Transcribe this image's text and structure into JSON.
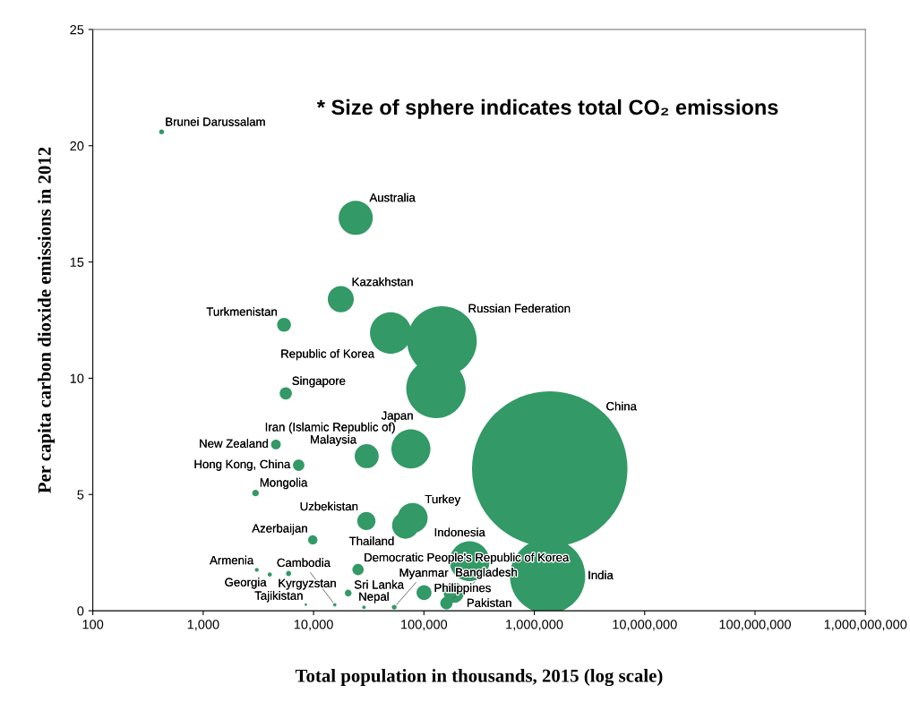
{
  "chart_data": {
    "type": "bubble",
    "xlabel": "Total population in thousands, 2015 (log scale)",
    "ylabel": "Per capita carbon dioxide emissions in 2012",
    "annotations": [
      "* Size of sphere indicates total CO₂ emissions"
    ],
    "log": "x",
    "grid": false,
    "legend": false,
    "xlim": [
      100,
      1000000000
    ],
    "xticks": [
      100,
      {
        "value": 1000,
        "label": "1,000"
      },
      {
        "value": 10000,
        "label": "10,000"
      },
      {
        "value": 100000,
        "label": "100,000"
      },
      {
        "value": 1000000,
        "label": "1,000,000"
      },
      {
        "value": 10000000,
        "label": "10,000,000"
      },
      {
        "value": 100000000,
        "label": "100,000,000"
      },
      {
        "value": 1000000000,
        "label": "1,000,000,000"
      }
    ],
    "ylim": [
      0,
      25
    ],
    "yticks": [
      0,
      5,
      10,
      15,
      20,
      25
    ],
    "series": [
      {
        "color": "#339966",
        "x": [
          420,
          24100,
          17650,
          5400,
          50000,
          145600,
          128500,
          5600,
          4560,
          7330,
          30300,
          76200,
          68000,
          79000,
          30100,
          9840,
          2980,
          3060,
          5940,
          4010,
          25300,
          20600,
          8510,
          15560,
          28600,
          53800,
          100200,
          160000,
          186600,
          259400,
          1320000,
          1380000
        ],
        "values": [
          20.6,
          16.9,
          13.4,
          12.3,
          11.95,
          11.6,
          9.56,
          9.35,
          7.15,
          6.26,
          6.65,
          6.96,
          3.67,
          3.99,
          3.86,
          3.05,
          5.06,
          1.76,
          1.6,
          1.56,
          1.77,
          0.76,
          0.26,
          0.26,
          0.15,
          0.15,
          0.78,
          0.33,
          0.78,
          2.13,
          1.49,
          6.1
        ],
        "sizes": [
          0.00103,
          0.0484,
          0.0281,
          0.0079,
          0.071,
          0.201,
          0.146,
          0.0062,
          0.0039,
          0.0054,
          0.0239,
          0.063,
          0.0296,
          0.0374,
          0.0138,
          0.0036,
          0.0018,
          0.00064,
          0.00113,
          0.00074,
          0.0053,
          0.0019,
          0.00026,
          0.00048,
          0.00051,
          0.00096,
          0.0093,
          0.0063,
          0.0173,
          0.0656,
          0.234,
          1
        ],
        "value_labels": [
          "Brunei Darussalam",
          "Australia",
          "Kazakhstan",
          "Turkmenistan",
          "Republic of Korea",
          "Russian Federation",
          "Japan",
          "Singapore",
          "New Zealand",
          "Hong Kong, China",
          "Malaysia",
          "Iran (Islamic Republic of)",
          "Thailand",
          "Turkey",
          "Uzbekistan",
          "Azerbaijan",
          "Mongolia",
          "Armenia",
          "Kyrgyzstan",
          "Georgia",
          "Democratic People's Republic of Korea",
          "Sri Lanka",
          "Tajikistan",
          "Cambodia",
          "Nepal",
          "Myanmar",
          "Philippines",
          "Bangladesh",
          "Pakistan",
          "Indonesia",
          "India",
          "China"
        ]
      }
    ]
  }
}
